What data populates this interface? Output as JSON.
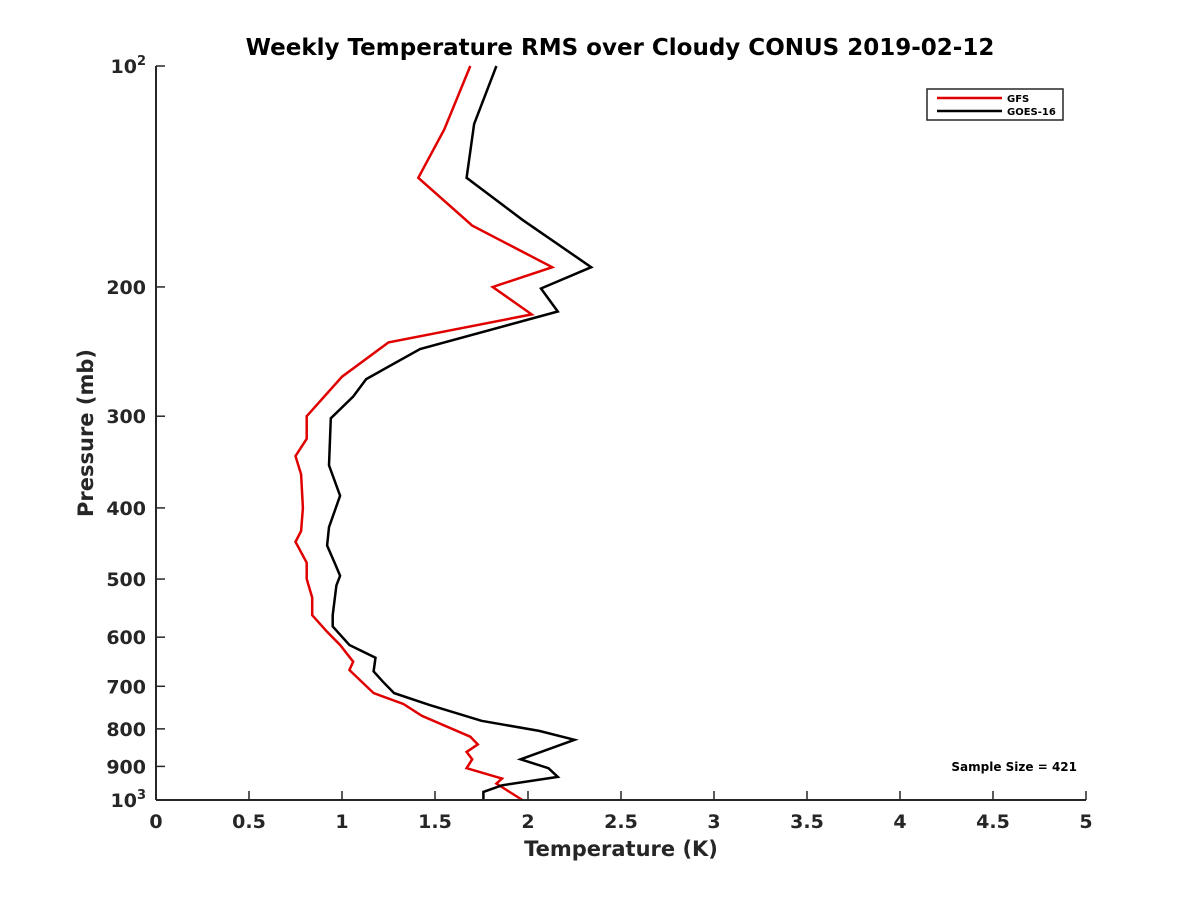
{
  "chart_data": {
    "type": "line",
    "title": "Weekly Temperature RMS over Cloudy CONUS 2019-02-12",
    "xlabel": "Temperature (K)",
    "ylabel": "Pressure (mb)",
    "xlim": [
      0,
      5
    ],
    "ylim": [
      100,
      1000
    ],
    "yscale": "log",
    "yreversed": true,
    "x_ticks": [
      0,
      0.5,
      1,
      1.5,
      2,
      2.5,
      3,
      3.5,
      4,
      4.5,
      5
    ],
    "x_tick_labels": [
      "0",
      "0.5",
      "1",
      "1.5",
      "2",
      "2.5",
      "3",
      "3.5",
      "4",
      "4.5",
      "5"
    ],
    "y_ticks": [
      {
        "value": 100,
        "label": "10",
        "sup": "2"
      },
      {
        "value": 200,
        "label": "200",
        "sup": ""
      },
      {
        "value": 300,
        "label": "300",
        "sup": ""
      },
      {
        "value": 400,
        "label": "400",
        "sup": ""
      },
      {
        "value": 500,
        "label": "500",
        "sup": ""
      },
      {
        "value": 600,
        "label": "600",
        "sup": ""
      },
      {
        "value": 700,
        "label": "700",
        "sup": ""
      },
      {
        "value": 800,
        "label": "800",
        "sup": ""
      },
      {
        "value": 900,
        "label": "900",
        "sup": ""
      },
      {
        "value": 1000,
        "label": "10",
        "sup": "3"
      }
    ],
    "grid": false,
    "legend_position": "top-right",
    "annotation": "Sample Size = 421",
    "series": [
      {
        "name": "GFS",
        "color": "#e00000",
        "points": [
          [
            1.69,
            100
          ],
          [
            1.55,
            122
          ],
          [
            1.41,
            142
          ],
          [
            1.7,
            165
          ],
          [
            2.13,
            188
          ],
          [
            1.81,
            200
          ],
          [
            2.02,
            218
          ],
          [
            1.25,
            238
          ],
          [
            1.0,
            265
          ],
          [
            0.81,
            300
          ],
          [
            0.81,
            322
          ],
          [
            0.75,
            340
          ],
          [
            0.78,
            360
          ],
          [
            0.79,
            400
          ],
          [
            0.78,
            430
          ],
          [
            0.75,
            445
          ],
          [
            0.81,
            475
          ],
          [
            0.81,
            500
          ],
          [
            0.84,
            530
          ],
          [
            0.84,
            560
          ],
          [
            0.92,
            590
          ],
          [
            0.99,
            615
          ],
          [
            1.06,
            648
          ],
          [
            1.04,
            665
          ],
          [
            1.17,
            715
          ],
          [
            1.33,
            740
          ],
          [
            1.43,
            768
          ],
          [
            1.69,
            820
          ],
          [
            1.73,
            840
          ],
          [
            1.67,
            860
          ],
          [
            1.7,
            880
          ],
          [
            1.67,
            905
          ],
          [
            1.86,
            935
          ],
          [
            1.83,
            950
          ],
          [
            1.97,
            1000
          ]
        ]
      },
      {
        "name": "GOES-16",
        "color": "#000000",
        "points": [
          [
            1.83,
            100
          ],
          [
            1.71,
            120
          ],
          [
            1.67,
            142
          ],
          [
            1.97,
            162
          ],
          [
            2.34,
            188
          ],
          [
            2.07,
            201
          ],
          [
            2.16,
            216
          ],
          [
            1.42,
            243
          ],
          [
            1.13,
            267
          ],
          [
            1.06,
            282
          ],
          [
            0.94,
            302
          ],
          [
            0.93,
            350
          ],
          [
            0.99,
            385
          ],
          [
            0.93,
            425
          ],
          [
            0.92,
            450
          ],
          [
            0.96,
            475
          ],
          [
            0.99,
            495
          ],
          [
            0.97,
            510
          ],
          [
            0.95,
            560
          ],
          [
            0.95,
            580
          ],
          [
            1.04,
            615
          ],
          [
            1.18,
            640
          ],
          [
            1.17,
            668
          ],
          [
            1.22,
            690
          ],
          [
            1.28,
            715
          ],
          [
            1.47,
            742
          ],
          [
            1.75,
            780
          ],
          [
            2.06,
            805
          ],
          [
            2.25,
            828
          ],
          [
            1.96,
            880
          ],
          [
            2.11,
            905
          ],
          [
            2.16,
            930
          ],
          [
            1.86,
            955
          ],
          [
            1.76,
            975
          ],
          [
            1.76,
            1000
          ]
        ]
      }
    ]
  }
}
